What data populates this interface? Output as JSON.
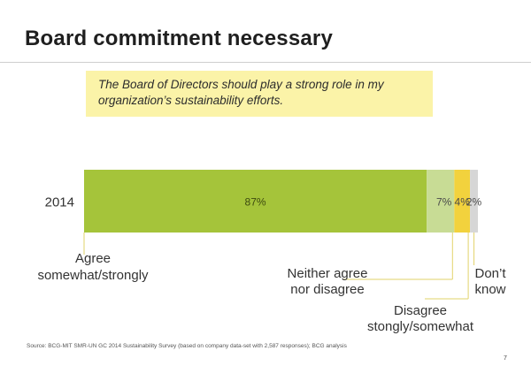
{
  "title": "Board commitment necessary",
  "statement": "The Board of Directors should play a strong role in my organization’s sustainability efforts.",
  "chart_data": {
    "type": "bar",
    "orientation": "horizontal",
    "stacked": true,
    "categories": [
      "2014"
    ],
    "series": [
      {
        "name": "Agree somewhat/strongly",
        "label_lines": [
          "Agree",
          "somewhat/strongly"
        ],
        "values": [
          87
        ],
        "color": "#a5c43a",
        "label_color": "#3d4a0f",
        "label_align": "middle"
      },
      {
        "name": "Neither agree nor disagree",
        "label_lines": [
          "Neither agree",
          "nor disagree"
        ],
        "values": [
          7
        ],
        "color": "#c8dc95",
        "label_color": "#4a4a4a",
        "label_align": "end"
      },
      {
        "name": "Disagree stongly/somewhat",
        "label_lines": [
          "Disagree",
          "stongly/somewhat"
        ],
        "values": [
          4
        ],
        "color": "#f2d23d",
        "label_color": "#4a4a4a",
        "label_align": "middle"
      },
      {
        "name": "Don’t know",
        "label_lines": [
          "Don’t",
          "know"
        ],
        "values": [
          2
        ],
        "color": "#d6d6d6",
        "label_color": "#4a4a4a",
        "label_align": "middle"
      }
    ],
    "value_suffix": "%",
    "xlim": [
      0,
      100
    ],
    "legend": "callouts-below",
    "grid": false
  },
  "source": "Source: BCG-MIT SMR-UN GC 2014 Sustainability Survey (based on company data-set with 2,587 responses); BCG analysis",
  "page_number": "7"
}
